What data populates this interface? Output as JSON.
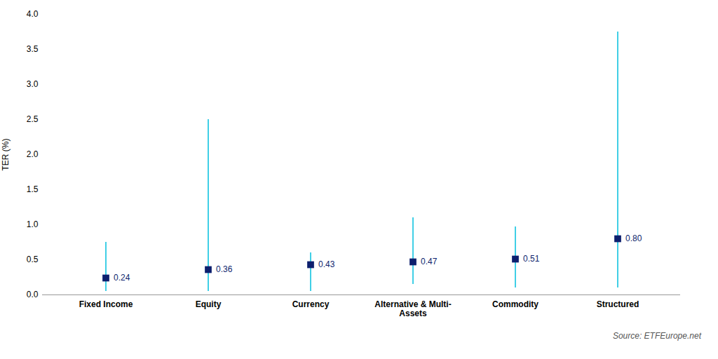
{
  "chart_data": {
    "type": "range",
    "categories": [
      "Fixed Income",
      "Equity",
      "Currency",
      "Alternative & Multi-\nAssets",
      "Commodity",
      "Structured"
    ],
    "series": [
      {
        "type": "range",
        "color": "#00BFDE",
        "low": [
          0.05,
          0.05,
          0.05,
          0.15,
          0.1,
          0.1
        ],
        "high": [
          0.75,
          2.5,
          0.6,
          1.1,
          0.97,
          3.75
        ]
      },
      {
        "type": "scatter",
        "marker": "square",
        "color": "#0D1F6E",
        "values": [
          0.24,
          0.36,
          0.43,
          0.47,
          0.51,
          0.8
        ],
        "value_labels": [
          "0.24",
          "0.36",
          "0.43",
          "0.47",
          "0.51",
          "0.80"
        ],
        "data_labels": true
      }
    ],
    "ylabel": "TER (%)",
    "ylim": [
      0,
      4.0
    ],
    "yticks": [
      {
        "value": 0,
        "label": "0.0"
      },
      0.5,
      {
        "value": 1.0,
        "label": "1.0"
      },
      1.5,
      {
        "value": 2.0,
        "label": "2.0"
      },
      2.5,
      {
        "value": 3.0,
        "label": "3.0"
      },
      3.5,
      {
        "value": 4.0,
        "label": "4.0"
      }
    ],
    "grid": false,
    "caption": "Source: ETFEurope.net"
  }
}
